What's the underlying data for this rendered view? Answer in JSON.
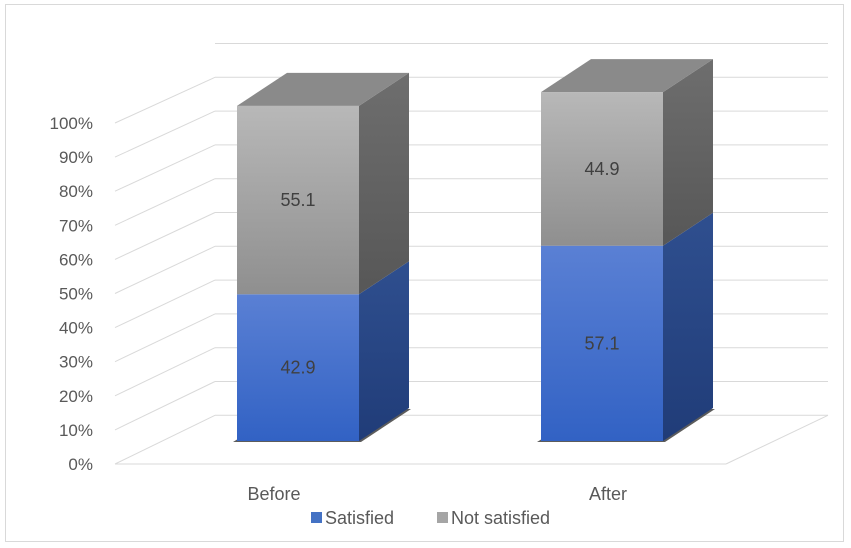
{
  "chart_data": {
    "type": "bar",
    "stacked": true,
    "three_d": true,
    "categories": [
      "Before",
      "After"
    ],
    "series": [
      {
        "name": "Satisfied",
        "values": [
          42.9,
          57.1
        ],
        "color": "#4472c4"
      },
      {
        "name": "Not satisfied",
        "values": [
          55.1,
          44.9
        ],
        "color": "#a5a5a5"
      }
    ],
    "yticks": [
      "0%",
      "10%",
      "20%",
      "30%",
      "40%",
      "50%",
      "60%",
      "70%",
      "80%",
      "90%",
      "100%"
    ],
    "ylim": [
      0,
      100
    ],
    "grid": true,
    "legend": "bottom",
    "title": "",
    "xlabel": "",
    "ylabel": ""
  }
}
